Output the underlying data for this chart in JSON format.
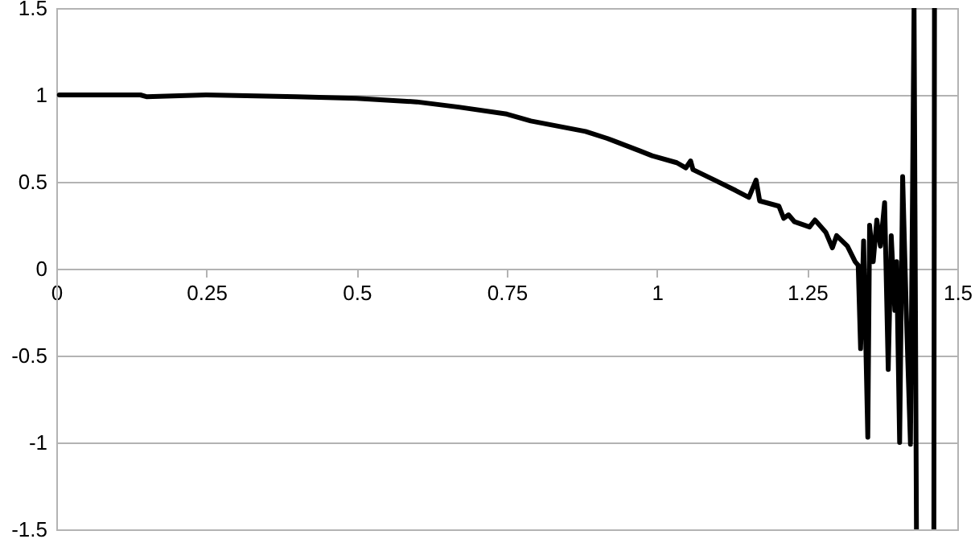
{
  "chart_data": {
    "type": "line",
    "series": [
      {
        "color": "#000000",
        "x": [
          0.005,
          0.1,
          0.14,
          0.15,
          0.25,
          0.4,
          0.5,
          0.6,
          0.67,
          0.75,
          0.79,
          0.881,
          0.917,
          0.97,
          0.992,
          1.033,
          1.048,
          1.056,
          1.06,
          1.096,
          1.131,
          1.153,
          1.165,
          1.171,
          1.203,
          1.211,
          1.219,
          1.229,
          1.254,
          1.263,
          1.281,
          1.292,
          1.299,
          1.317,
          1.33,
          1.335,
          1.339,
          1.344,
          1.351,
          1.354,
          1.36,
          1.366,
          1.372,
          1.379,
          1.385,
          1.39,
          1.396,
          1.399,
          1.404,
          1.409,
          1.415,
          1.422,
          1.428,
          1.432,
          1.447,
          1.461,
          1.462
        ],
        "values": [
          1.0,
          1.0,
          1.0,
          0.99,
          1.0,
          0.99,
          0.98,
          0.96,
          0.93,
          0.89,
          0.85,
          0.79,
          0.75,
          0.68,
          0.65,
          0.61,
          0.58,
          0.62,
          0.57,
          0.51,
          0.45,
          0.41,
          0.51,
          0.39,
          0.36,
          0.29,
          0.31,
          0.27,
          0.24,
          0.28,
          0.21,
          0.12,
          0.19,
          0.13,
          0.04,
          0.02,
          -0.46,
          0.16,
          -0.97,
          0.25,
          0.04,
          0.28,
          0.13,
          0.38,
          -0.58,
          0.19,
          -0.24,
          0.04,
          -1.0,
          0.53,
          -0.24,
          -1.01,
          1.5,
          -1.5,
          null,
          -1.5,
          1.5
        ]
      }
    ],
    "xlim": [
      0,
      1.5
    ],
    "ylim": [
      -1.5,
      1.5
    ],
    "xticks": [
      0,
      0.25,
      0.5,
      0.75,
      1,
      1.25,
      1.5
    ],
    "yticks": [
      -1.5,
      -1,
      -0.5,
      0,
      0.5,
      1,
      1.5
    ],
    "grid": "y",
    "marker": "none",
    "line_style": "solid"
  }
}
